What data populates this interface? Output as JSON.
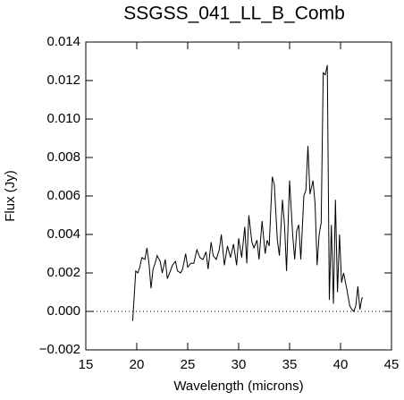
{
  "chart_data": {
    "type": "line",
    "title": "SSGSS_041_LL_B_Comb",
    "xlabel": "Wavelength (microns)",
    "ylabel": "Flux (Jy)",
    "xlim": [
      15,
      45
    ],
    "xticks": [
      15,
      20,
      25,
      30,
      35,
      40,
      45
    ],
    "ylim": [
      -0.002,
      0.014
    ],
    "yticks": [
      {
        "value": -0.002,
        "label": "−0.002"
      },
      {
        "value": 0,
        "label": "0.000"
      },
      0.002,
      0.004,
      0.006,
      0.008,
      {
        "value": 0.01,
        "label": "0.010"
      },
      0.012,
      0.014
    ],
    "zero_line": true,
    "series": [
      {
        "color": "#000000",
        "x": [
          19.6,
          19.9,
          20.1,
          20.3,
          20.5,
          20.8,
          21.0,
          21.2,
          21.4,
          21.6,
          21.8,
          22.0,
          22.3,
          22.5,
          22.8,
          23.0,
          23.3,
          23.5,
          23.8,
          24.0,
          24.3,
          24.5,
          24.8,
          25.0,
          25.3,
          25.6,
          25.9,
          26.2,
          26.5,
          26.8,
          27.0,
          27.3,
          27.5,
          27.8,
          28.1,
          28.3,
          28.6,
          28.9,
          29.2,
          29.5,
          29.8,
          30.0,
          30.3,
          30.6,
          30.8,
          31.0,
          31.3,
          31.5,
          31.8,
          32.0,
          32.3,
          32.6,
          32.8,
          33.0,
          33.3,
          33.5,
          33.8,
          34.0,
          34.3,
          34.5,
          34.7,
          35.0,
          35.3,
          35.5,
          35.7,
          35.9,
          36.1,
          36.4,
          36.6,
          36.8,
          37.0,
          37.3,
          37.5,
          37.7,
          37.9,
          38.1,
          38.3,
          38.5,
          38.7,
          38.9,
          39.1,
          39.3,
          39.5,
          39.7,
          39.9,
          40.1,
          40.3,
          40.6,
          40.9,
          41.1,
          41.3,
          41.5,
          41.7,
          41.9,
          42.1,
          42.2
        ],
        "values": [
          -0.0005,
          0.0021,
          0.002,
          0.0023,
          0.0028,
          0.0027,
          0.0033,
          0.0025,
          0.0012,
          0.0022,
          0.0025,
          0.0029,
          0.0026,
          0.002,
          0.0027,
          0.0017,
          0.0021,
          0.0024,
          0.0026,
          0.0021,
          0.002,
          0.0022,
          0.003,
          0.0023,
          0.0025,
          0.0025,
          0.0032,
          0.0028,
          0.0027,
          0.0031,
          0.0022,
          0.0036,
          0.0029,
          0.0027,
          0.0032,
          0.004,
          0.0024,
          0.0034,
          0.0028,
          0.0035,
          0.0024,
          0.0038,
          0.0028,
          0.0044,
          0.0025,
          0.005,
          0.0036,
          0.0033,
          0.0037,
          0.0027,
          0.0047,
          0.003,
          0.0037,
          0.0034,
          0.007,
          0.0066,
          0.0037,
          0.0029,
          0.0058,
          0.0045,
          0.0021,
          0.0068,
          0.004,
          0.0027,
          0.0042,
          0.0045,
          0.0027,
          0.006,
          0.0063,
          0.0086,
          0.0061,
          0.0068,
          0.0056,
          0.0024,
          0.004,
          0.0046,
          0.0124,
          0.0123,
          0.0128,
          0.0006,
          0.0045,
          0.0004,
          0.0058,
          0.001,
          0.004,
          0.0015,
          0.002,
          0.0012,
          0.0003,
          0.0001,
          0,
          0.0003,
          0.0013,
          0.0001,
          0.0007,
          0.0007
        ]
      }
    ]
  }
}
